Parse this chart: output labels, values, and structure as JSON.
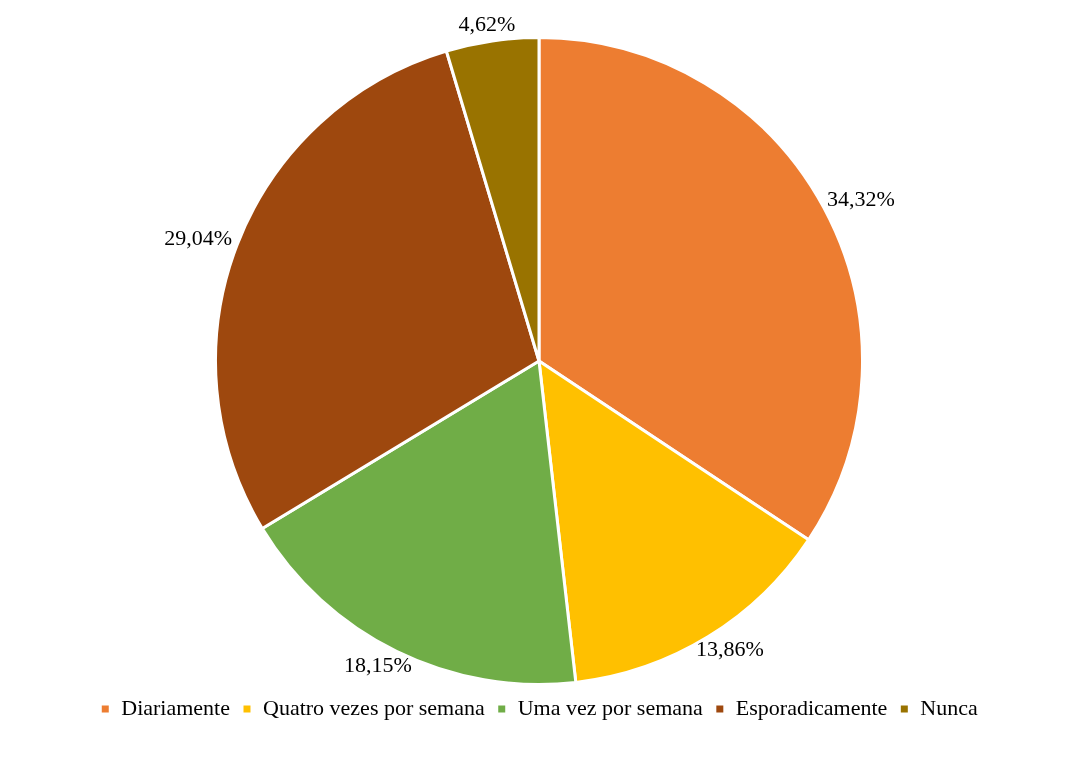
{
  "chart_data": {
    "type": "pie",
    "categories": [
      "Diariamente",
      "Quatro vezes por semana",
      "Uma vez por semana",
      "Esporadicamente",
      "Nunca"
    ],
    "values": [
      34.32,
      13.86,
      18.15,
      29.04,
      4.62
    ],
    "colors": [
      "#ed7d31",
      "#ffc000",
      "#70ad47",
      "#9e480e",
      "#997300"
    ],
    "value_labels": [
      "34,32%",
      "13,86%",
      "18,15%",
      "29,04%",
      "4,62%"
    ],
    "legend": "bottom"
  }
}
